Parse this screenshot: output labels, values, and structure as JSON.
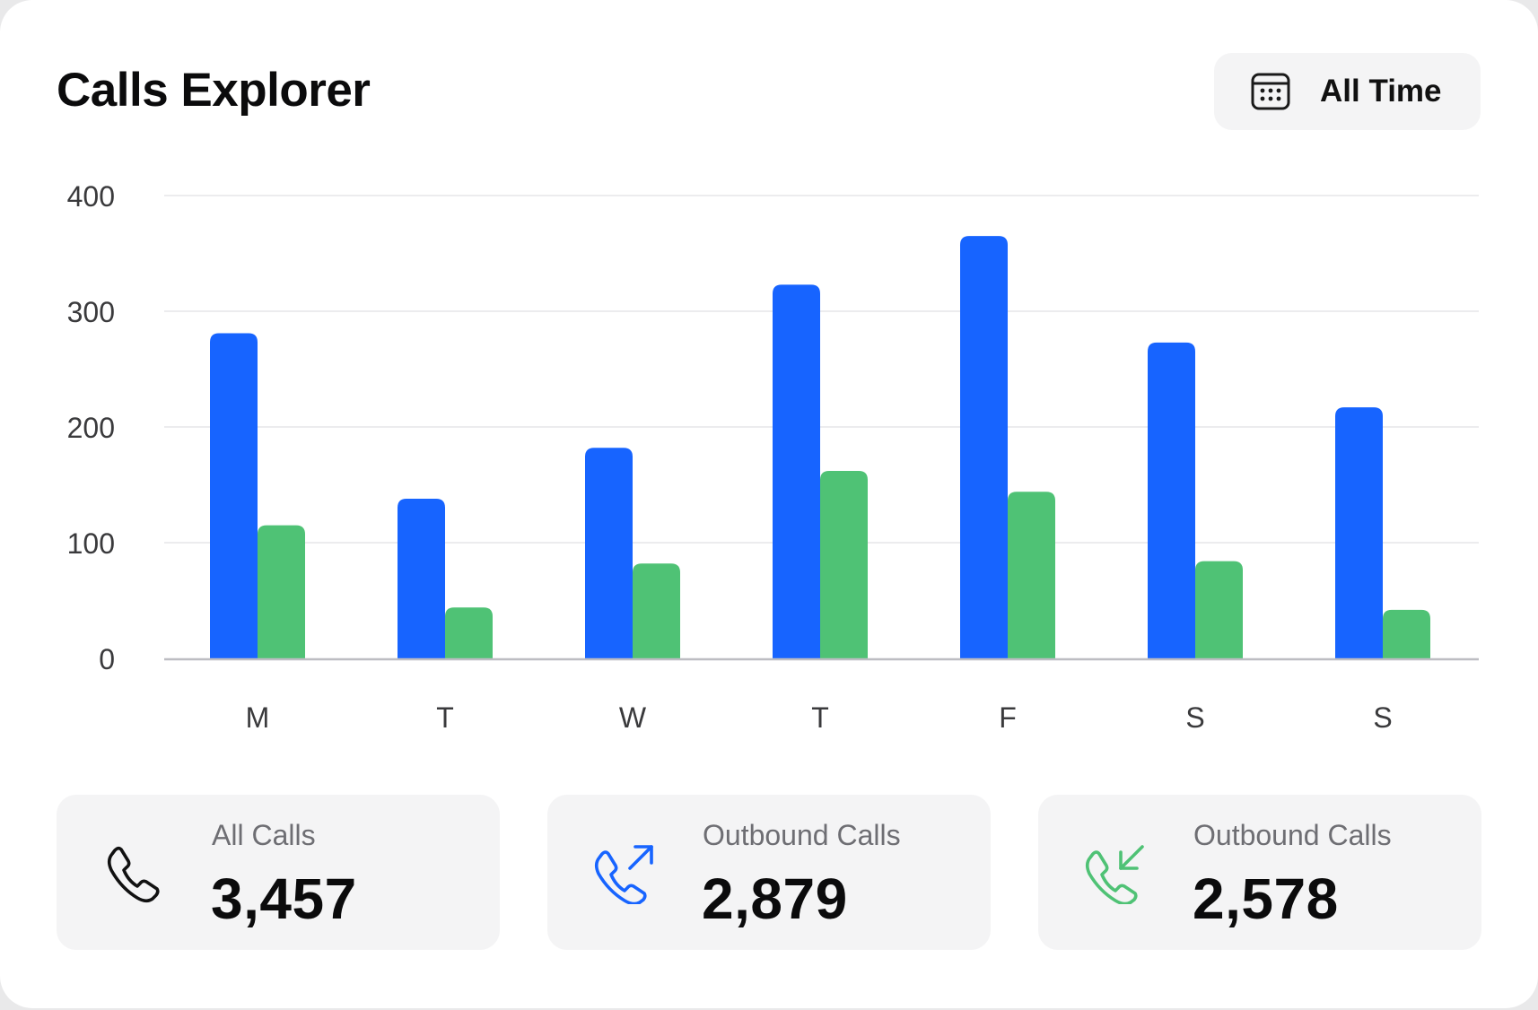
{
  "header": {
    "title": "Calls Explorer",
    "time_filter": {
      "label": "All Time",
      "icon": "calendar-icon"
    }
  },
  "colors": {
    "all_calls": "#1764ff",
    "second_series": "#4fc275",
    "gridline": "#ececee",
    "axis": "#bdbdc2",
    "tick_text": "#3a3a3c"
  },
  "chart_data": {
    "type": "bar",
    "categories": [
      "M",
      "T",
      "W",
      "T",
      "F",
      "S",
      "S"
    ],
    "series": [
      {
        "values": [
          281,
          138,
          182,
          323,
          365,
          273,
          217
        ]
      },
      {
        "values": [
          115,
          44,
          82,
          162,
          144,
          84,
          42
        ]
      }
    ],
    "ylim": [
      0,
      400
    ],
    "yticks": [
      0,
      100,
      200,
      300,
      400
    ],
    "grid": true,
    "title": "",
    "xlabel": "",
    "ylabel": ""
  },
  "stats": [
    {
      "label": "All Calls",
      "value": "3,457",
      "icon": "phone-icon"
    },
    {
      "label": "Outbound Calls",
      "value": "2,879",
      "icon": "phone-outgoing-icon"
    },
    {
      "label": "Outbound Calls",
      "value": "2,578",
      "icon": "phone-incoming-icon"
    }
  ]
}
